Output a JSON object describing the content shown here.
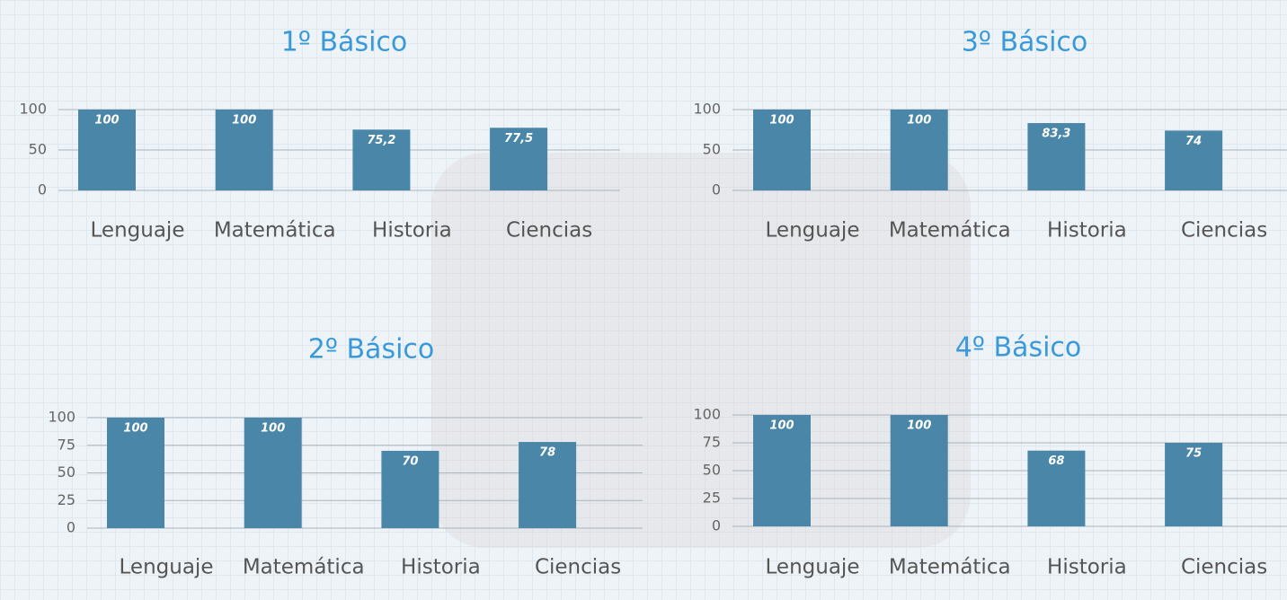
{
  "chart_data": [
    {
      "type": "bar",
      "title": "1º Básico",
      "categories": [
        "Lenguaje",
        "Matemática",
        "Historia",
        "Ciencias"
      ],
      "values": [
        100,
        100,
        75.2,
        77.5
      ],
      "value_labels": [
        "100",
        "100",
        "75,2",
        "77,5"
      ],
      "color": "#4a86a8",
      "ylim": [
        0,
        100
      ],
      "yticks": [
        0,
        50,
        100
      ],
      "grid": true
    },
    {
      "type": "bar",
      "title": "3º Básico",
      "categories": [
        "Lenguaje",
        "Matemática",
        "Historia",
        "Ciencias"
      ],
      "values": [
        100,
        100,
        83.3,
        74
      ],
      "value_labels": [
        "100",
        "100",
        "83,3",
        "74"
      ],
      "color": "#4a86a8",
      "ylim": [
        0,
        100
      ],
      "yticks": [
        0,
        50,
        100
      ],
      "grid": true
    },
    {
      "type": "bar",
      "title": "2º Básico",
      "categories": [
        "Lenguaje",
        "Matemática",
        "Historia",
        "Ciencias"
      ],
      "values": [
        100,
        100,
        70,
        78
      ],
      "color": "#4a86a8",
      "ylim": [
        0,
        100
      ],
      "yticks": [
        0,
        25,
        50,
        75,
        100
      ],
      "grid": true
    },
    {
      "type": "bar",
      "title": "4º Básico",
      "categories": [
        "Lenguaje",
        "Matemática",
        "Historia",
        "Ciencias"
      ],
      "values": [
        100,
        100,
        68,
        75
      ],
      "color": "#4a86a8",
      "ylim": [
        0,
        100
      ],
      "yticks": [
        0,
        25,
        50,
        75,
        100
      ],
      "grid": true
    }
  ]
}
